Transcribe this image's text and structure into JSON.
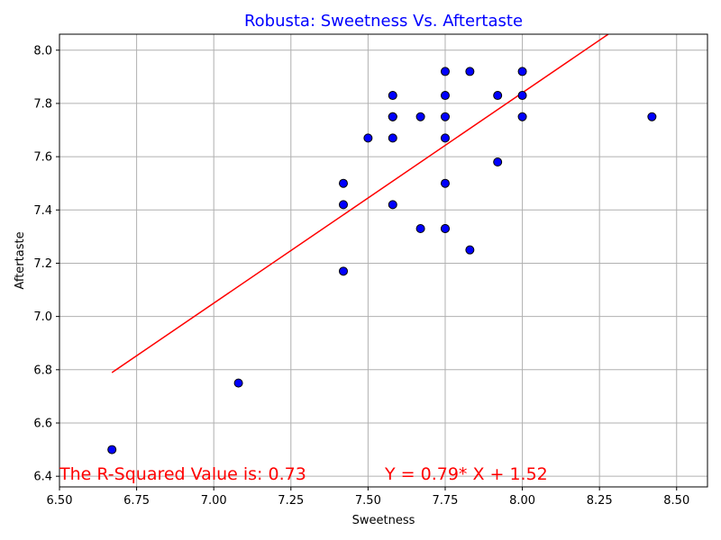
{
  "chart_data": {
    "type": "scatter",
    "title": "Robusta: Sweetness Vs. Aftertaste",
    "xlabel": "Sweetness",
    "ylabel": "Aftertaste",
    "xlim": [
      6.5,
      8.6
    ],
    "ylim": [
      6.36,
      8.06
    ],
    "xticks": [
      "6.50",
      "6.75",
      "7.00",
      "7.25",
      "7.50",
      "7.75",
      "8.00",
      "8.25",
      "8.50"
    ],
    "yticks": [
      "6.4",
      "6.6",
      "6.8",
      "7.0",
      "7.2",
      "7.4",
      "7.6",
      "7.8",
      "8.0"
    ],
    "grid": true,
    "points": [
      {
        "x": 6.67,
        "y": 6.5
      },
      {
        "x": 7.08,
        "y": 6.75
      },
      {
        "x": 7.42,
        "y": 7.17
      },
      {
        "x": 7.42,
        "y": 7.42
      },
      {
        "x": 7.42,
        "y": 7.5
      },
      {
        "x": 7.5,
        "y": 7.67
      },
      {
        "x": 7.58,
        "y": 7.42
      },
      {
        "x": 7.58,
        "y": 7.67
      },
      {
        "x": 7.58,
        "y": 7.75
      },
      {
        "x": 7.58,
        "y": 7.75
      },
      {
        "x": 7.58,
        "y": 7.83
      },
      {
        "x": 7.67,
        "y": 7.33
      },
      {
        "x": 7.67,
        "y": 7.75
      },
      {
        "x": 7.75,
        "y": 7.33
      },
      {
        "x": 7.75,
        "y": 7.33
      },
      {
        "x": 7.75,
        "y": 7.5
      },
      {
        "x": 7.75,
        "y": 7.67
      },
      {
        "x": 7.75,
        "y": 7.75
      },
      {
        "x": 7.75,
        "y": 7.83
      },
      {
        "x": 7.75,
        "y": 7.92
      },
      {
        "x": 7.83,
        "y": 7.25
      },
      {
        "x": 7.83,
        "y": 7.92
      },
      {
        "x": 7.92,
        "y": 7.58
      },
      {
        "x": 7.92,
        "y": 7.83
      },
      {
        "x": 8.0,
        "y": 7.75
      },
      {
        "x": 8.0,
        "y": 7.83
      },
      {
        "x": 8.0,
        "y": 7.92
      },
      {
        "x": 8.42,
        "y": 7.75
      }
    ],
    "regression": {
      "slope": 0.79,
      "intercept": 1.52,
      "x_start": 6.67,
      "x_end": 8.42
    },
    "annotations": {
      "r_squared": "The R-Squared Value is: 0.73",
      "equation": "Y = 0.79* X + 1.52"
    },
    "colors": {
      "title": "#0000ff",
      "marker_fill": "#0000ff",
      "marker_edge": "#000000",
      "regression_line": "#ff0000",
      "annotation": "#ff0000",
      "grid": "#b0b0b0"
    }
  }
}
